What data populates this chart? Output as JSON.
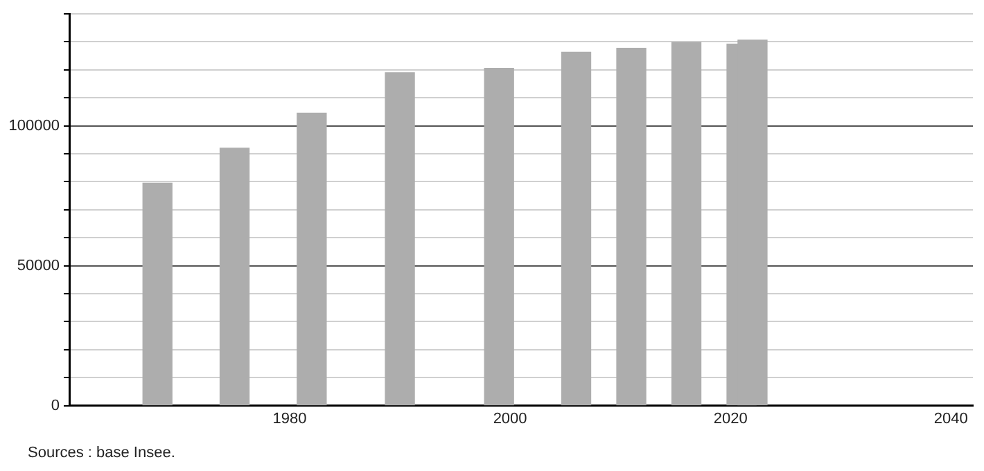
{
  "chart_data": {
    "type": "bar",
    "x": [
      1968,
      1975,
      1982,
      1990,
      1999,
      2006,
      2011,
      2016,
      2021,
      2022
    ],
    "values": [
      79500,
      92000,
      104500,
      119000,
      120500,
      126300,
      127700,
      129800,
      129200,
      130600
    ],
    "color": "#adadad",
    "xlim": [
      1960,
      2042
    ],
    "xticks": [
      1980,
      2000,
      2020,
      2040
    ],
    "ylim": [
      0,
      140000
    ],
    "yticks": [
      0,
      {
        "value": 10000,
        "label": null
      },
      {
        "value": 20000,
        "label": null
      },
      {
        "value": 30000,
        "label": null
      },
      {
        "value": 40000,
        "label": null
      },
      50000,
      {
        "value": 60000,
        "label": null
      },
      {
        "value": 70000,
        "label": null
      },
      {
        "value": 80000,
        "label": null
      },
      {
        "value": 90000,
        "label": null
      },
      100000,
      {
        "value": 110000,
        "label": null
      },
      {
        "value": 120000,
        "label": null
      },
      {
        "value": 130000,
        "label": null
      },
      {
        "value": 140000,
        "label": null
      }
    ],
    "grid": "y",
    "annotations": [
      "Sources : base Insee."
    ]
  }
}
